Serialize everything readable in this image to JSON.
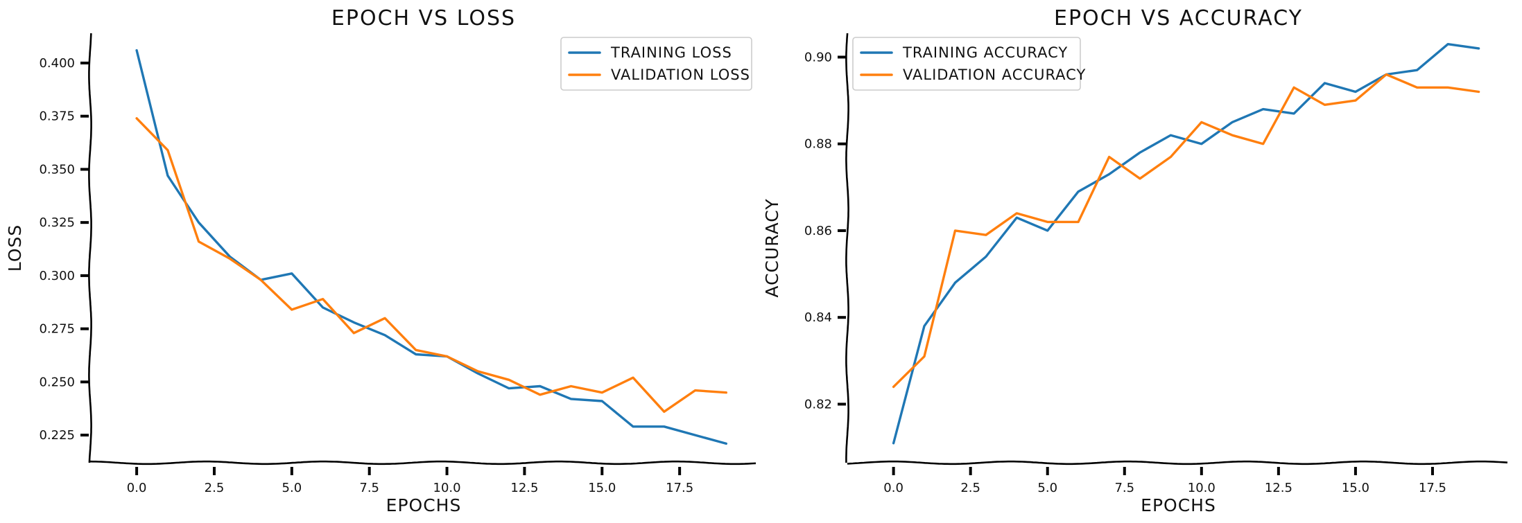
{
  "chart_data": [
    {
      "type": "line",
      "title": "EPOCH VS LOSS",
      "xlabel": "EPOCHS",
      "ylabel": "LOSS",
      "xlim": [
        -1.5,
        20
      ],
      "ylim": [
        0.212,
        0.414
      ],
      "xticks": [
        0,
        2.5,
        5,
        7.5,
        10,
        12.5,
        15,
        17.5
      ],
      "xtick_labels": [
        "0.0",
        "2.5",
        "5.0",
        "7.5",
        "10.0",
        "12.5",
        "15.0",
        "17.5"
      ],
      "yticks": [
        0.225,
        0.25,
        0.275,
        0.3,
        0.325,
        0.35,
        0.375,
        0.4
      ],
      "ytick_labels": [
        "0.225",
        "0.250",
        "0.275",
        "0.300",
        "0.325",
        "0.350",
        "0.375",
        "0.400"
      ],
      "grid": false,
      "legend_position": "top-right",
      "x": [
        0,
        1,
        2,
        3,
        4,
        5,
        6,
        7,
        8,
        9,
        10,
        11,
        12,
        13,
        14,
        15,
        16,
        17,
        18,
        19
      ],
      "series": [
        {
          "name": "TRAINING LOSS",
          "color": "#1f77b4",
          "values": [
            0.406,
            0.347,
            0.325,
            0.309,
            0.298,
            0.301,
            0.285,
            0.278,
            0.272,
            0.263,
            0.262,
            0.254,
            0.247,
            0.248,
            0.242,
            0.241,
            0.229,
            0.229,
            0.225,
            0.221
          ]
        },
        {
          "name": "VALIDATION LOSS",
          "color": "#ff7f0e",
          "values": [
            0.374,
            0.359,
            0.316,
            0.308,
            0.298,
            0.284,
            0.289,
            0.273,
            0.28,
            0.265,
            0.262,
            0.255,
            0.251,
            0.244,
            0.248,
            0.245,
            0.252,
            0.236,
            0.246,
            0.245
          ]
        }
      ]
    },
    {
      "type": "line",
      "title": "EPOCH VS ACCURACY",
      "xlabel": "EPOCHS",
      "ylabel": "ACCURACY",
      "xlim": [
        -1.5,
        20
      ],
      "ylim": [
        0.8065,
        0.9055
      ],
      "xticks": [
        0,
        2.5,
        5,
        7.5,
        10,
        12.5,
        15,
        17.5
      ],
      "xtick_labels": [
        "0.0",
        "2.5",
        "5.0",
        "7.5",
        "10.0",
        "12.5",
        "15.0",
        "17.5"
      ],
      "yticks": [
        0.82,
        0.84,
        0.86,
        0.88,
        0.9
      ],
      "ytick_labels": [
        "0.82",
        "0.84",
        "0.86",
        "0.88",
        "0.90"
      ],
      "grid": false,
      "legend_position": "top-left",
      "x": [
        0,
        1,
        2,
        3,
        4,
        5,
        6,
        7,
        8,
        9,
        10,
        11,
        12,
        13,
        14,
        15,
        16,
        17,
        18,
        19
      ],
      "series": [
        {
          "name": "TRAINING ACCURACY",
          "color": "#1f77b4",
          "values": [
            0.811,
            0.838,
            0.848,
            0.854,
            0.863,
            0.86,
            0.869,
            0.873,
            0.878,
            0.882,
            0.88,
            0.885,
            0.888,
            0.887,
            0.894,
            0.892,
            0.896,
            0.897,
            0.903,
            0.902
          ]
        },
        {
          "name": "VALIDATION ACCURACY",
          "color": "#ff7f0e",
          "values": [
            0.824,
            0.831,
            0.86,
            0.859,
            0.864,
            0.862,
            0.862,
            0.877,
            0.872,
            0.877,
            0.885,
            0.882,
            0.88,
            0.893,
            0.889,
            0.89,
            0.896,
            0.893,
            0.893,
            0.892
          ]
        }
      ]
    }
  ]
}
